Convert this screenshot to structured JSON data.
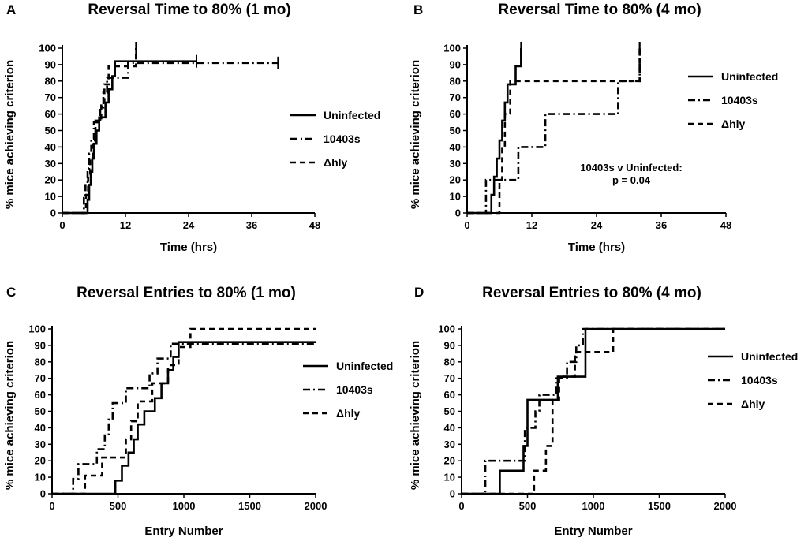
{
  "chart_data": [
    {
      "panel_label": "A",
      "type": "line",
      "title": "Reversal Time to 80% (1 mo)",
      "xlabel": "Time  (hrs)",
      "ylabel": "% mice achieving criterion",
      "xlim": [
        0,
        48
      ],
      "ylim": [
        0,
        100
      ],
      "xticks": [
        "0",
        "12",
        "24",
        "36",
        "48"
      ],
      "yticks": [
        "0",
        "10",
        "20",
        "30",
        "40",
        "50",
        "60",
        "70",
        "80",
        "90",
        "100"
      ],
      "legend": "right",
      "annotation": [],
      "series": [
        {
          "name": "Uninfected",
          "style": "solid",
          "x": [
            0,
            4.5,
            4.8,
            5.1,
            5.4,
            5.7,
            6.0,
            6.5,
            7.0,
            7.7,
            8.2,
            8.8,
            9.5,
            10,
            25.5
          ],
          "y": [
            0,
            0,
            8,
            17,
            25,
            33,
            42,
            50,
            58,
            58,
            67,
            75,
            83,
            92,
            92
          ],
          "end_mark": 25.5
        },
        {
          "name": "10403s",
          "style": "dashdot",
          "x": [
            0,
            3.8,
            4.1,
            4.4,
            4.8,
            5.1,
            5.5,
            6.0,
            6.6,
            7.2,
            7.8,
            8.5,
            9.2,
            10,
            11,
            12.5,
            13.5,
            41
          ],
          "y": [
            0,
            0,
            9,
            18,
            27,
            36,
            45,
            55,
            55,
            64,
            73,
            82,
            82,
            82,
            82,
            91,
            91,
            91
          ],
          "end_mark": 41
        },
        {
          "name": "Δhly",
          "style": "dashed",
          "x": [
            0,
            4.2,
            4.5,
            4.9,
            5.3,
            5.8,
            6.3,
            6.8,
            7.4,
            8.0,
            8.8,
            9.8,
            14
          ],
          "y": [
            0,
            0,
            11,
            22,
            33,
            44,
            56,
            56,
            67,
            78,
            89,
            89,
            100
          ],
          "end_mark": 14
        }
      ]
    },
    {
      "panel_label": "B",
      "type": "line",
      "title": "Reversal Time to 80% (4 mo)",
      "xlabel": "Time (hrs)",
      "ylabel": "% mice achieving criterion",
      "xlim": [
        0,
        48
      ],
      "ylim": [
        0,
        100
      ],
      "xticks": [
        "0",
        "12",
        "24",
        "36",
        "48"
      ],
      "yticks": [
        "0",
        "10",
        "20",
        "30",
        "40",
        "50",
        "60",
        "70",
        "80",
        "90",
        "100"
      ],
      "legend": "right",
      "annotation": [
        "10403s v Uninfected:",
        "p = 0.04"
      ],
      "series": [
        {
          "name": "Uninfected",
          "style": "solid",
          "x": [
            0,
            4.0,
            4.5,
            5.0,
            5.5,
            6.0,
            6.5,
            7.0,
            7.5,
            8.0,
            9.0,
            10.0
          ],
          "y": [
            0,
            0,
            11,
            22,
            33,
            44,
            56,
            67,
            78,
            78,
            89,
            100
          ],
          "end_mark": 10
        },
        {
          "name": "10403s",
          "style": "dashdot",
          "x": [
            0,
            3.5,
            8.5,
            9.5,
            13.5,
            14.5,
            27,
            28,
            32
          ],
          "y": [
            0,
            20,
            20,
            40,
            40,
            60,
            60,
            80,
            100
          ],
          "end_mark": 32
        },
        {
          "name": "Δhly",
          "style": "dashed",
          "x": [
            0,
            5.5,
            6.0,
            6.5,
            7.0,
            7.5,
            8.0,
            31.5,
            32
          ],
          "y": [
            0,
            0,
            20,
            40,
            60,
            60,
            80,
            80,
            100
          ],
          "end_mark": 32
        }
      ]
    },
    {
      "panel_label": "C",
      "type": "line",
      "title": "Reversal Entries to 80% (1 mo)",
      "xlabel": "Entry Number",
      "ylabel": "% mice achieving criterion",
      "xlim": [
        0,
        2000
      ],
      "ylim": [
        0,
        100
      ],
      "xticks": [
        "0",
        "500",
        "1000",
        "1500",
        "2000"
      ],
      "yticks": [
        "0",
        "10",
        "20",
        "30",
        "40",
        "50",
        "60",
        "70",
        "80",
        "90",
        "100"
      ],
      "legend": "right",
      "annotation": [],
      "series": [
        {
          "name": "Uninfected",
          "style": "solid",
          "x": [
            0,
            440,
            480,
            530,
            580,
            620,
            650,
            700,
            780,
            830,
            880,
            920,
            960,
            2000
          ],
          "y": [
            0,
            0,
            8,
            17,
            25,
            33,
            42,
            50,
            58,
            67,
            75,
            83,
            92,
            92
          ]
        },
        {
          "name": "10403s",
          "style": "dashdot",
          "x": [
            0,
            160,
            200,
            300,
            340,
            400,
            430,
            460,
            520,
            560,
            620,
            660,
            700,
            740,
            800,
            860,
            900,
            1000,
            2000
          ],
          "y": [
            0,
            9,
            18,
            18,
            27,
            36,
            45,
            55,
            55,
            64,
            64,
            64,
            64,
            73,
            82,
            82,
            91,
            91,
            91
          ]
        },
        {
          "name": "Δhly",
          "style": "dashed",
          "x": [
            0,
            250,
            330,
            380,
            480,
            560,
            600,
            650,
            700,
            760,
            820,
            880,
            960,
            1050,
            2000
          ],
          "y": [
            0,
            11,
            11,
            22,
            22,
            33,
            44,
            56,
            56,
            67,
            67,
            78,
            89,
            100,
            100
          ]
        }
      ]
    },
    {
      "panel_label": "D",
      "type": "line",
      "title": "Reversal Entries to 80% (4 mo)",
      "xlabel": "Entry Number",
      "ylabel": "% mice achieving criterion",
      "xlim": [
        0,
        2000
      ],
      "ylim": [
        0,
        100
      ],
      "xticks": [
        "0",
        "500",
        "1000",
        "1500",
        "2000"
      ],
      "yticks": [
        "0",
        "10",
        "20",
        "30",
        "40",
        "50",
        "60",
        "70",
        "80",
        "90",
        "100"
      ],
      "legend": "right",
      "annotation": [],
      "series": [
        {
          "name": "Uninfected",
          "style": "solid",
          "x": [
            0,
            290,
            420,
            470,
            500,
            700,
            730,
            940,
            2000
          ],
          "y": [
            0,
            14,
            14,
            29,
            57,
            57,
            71,
            100,
            100
          ]
        },
        {
          "name": "10403s",
          "style": "dashdot",
          "x": [
            0,
            180,
            330,
            420,
            480,
            520,
            560,
            590,
            630,
            700,
            720,
            800,
            870,
            920,
            2000
          ],
          "y": [
            0,
            20,
            20,
            20,
            40,
            40,
            50,
            60,
            60,
            60,
            70,
            80,
            90,
            100,
            100
          ]
        },
        {
          "name": "Δhly",
          "style": "dashed",
          "x": [
            0,
            550,
            600,
            640,
            690,
            740,
            860,
            1150,
            2000
          ],
          "y": [
            0,
            14,
            14,
            29,
            57,
            71,
            86,
            100,
            100
          ]
        }
      ]
    }
  ]
}
